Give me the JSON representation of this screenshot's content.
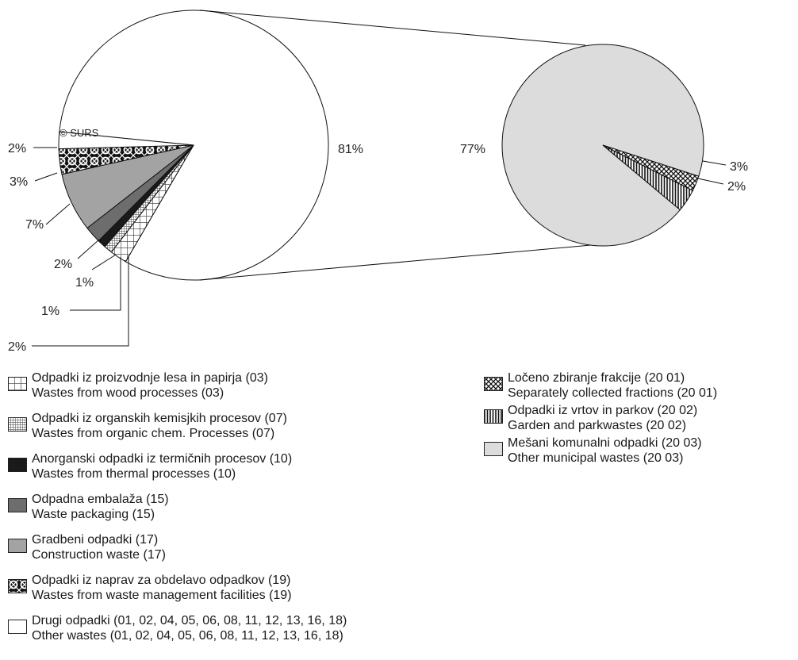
{
  "watermark": "© SURS",
  "chart_data": [
    {
      "type": "pie",
      "slices": [
        {
          "name": "Drugi odpadki (01, 02, 04, 05, 06, 08, 11, 12, 13, 16, 18)",
          "value": 81,
          "label": "81%",
          "pattern": "white"
        },
        {
          "name": "Odpadki iz proizvodnje lesa in papirja (03)",
          "value": 2,
          "label": "2%",
          "pattern": "grid"
        },
        {
          "name": "Odpadki iz organskih kemisjkih procesov (07)",
          "value": 1,
          "label": "1%",
          "pattern": "finegrid"
        },
        {
          "name": "Anorganski odpadki iz termičnih procesov (10)",
          "value": 1,
          "label": "1%",
          "pattern": "black"
        },
        {
          "name": "Odpadna embalaža (15)",
          "value": 2,
          "label": "2%",
          "pattern": "dark"
        },
        {
          "name": "Gradbeni odpadki (17)",
          "value": 7,
          "label": "7%",
          "pattern": "mid"
        },
        {
          "name": "Odpadki iz naprav za obdelavo odpadkov (19)",
          "value": 3,
          "label": "3%",
          "pattern": "lace"
        },
        {
          "name": "Drugi odpadki (01, 02, 04, 05, 06, 08, 11, 12, 13, 16, 18)",
          "value": 2,
          "label": "2%",
          "pattern": "white"
        }
      ]
    },
    {
      "type": "pie",
      "slices": [
        {
          "name": "Mešani komunalni odpadki (20 03)",
          "value": 77,
          "label": "77%",
          "pattern": "light"
        },
        {
          "name": "Odpadki iz vrtov in parkov (20 02)",
          "value": 3,
          "label": "3%",
          "pattern": "vlines"
        },
        {
          "name": "Ločeno zbiranje frakcije (20 01)",
          "value": 2,
          "label": "2%",
          "pattern": "cross"
        }
      ]
    }
  ],
  "legend_left": [
    {
      "line1": "Odpadki iz proizvodnje lesa in papirja  (03)",
      "line2": "Wastes from wood processes (03)",
      "pattern": "grid"
    },
    {
      "line1": "Odpadki iz organskih kemisjkih procesov  (07)",
      "line2": "Wastes from organic chem. Processes (07)",
      "pattern": "finegrid"
    },
    {
      "line1": "Anorganski odpadki iz termičnih procesov  (10)",
      "line2": "Wastes from thermal processes (10)",
      "pattern": "black"
    },
    {
      "line1": "Odpadna embalaža  (15)",
      "line2": "Waste packaging (15)",
      "pattern": "dark"
    },
    {
      "line1": "Gradbeni odpadki  (17)",
      "line2": "Construction waste (17)",
      "pattern": "mid"
    },
    {
      "line1": "Odpadki iz naprav za obdelavo odpadkov  (19)",
      "line2": "Wastes from waste management facilities (19)",
      "pattern": "lace"
    },
    {
      "line1": "Drugi odpadki (01, 02, 04, 05, 06, 08, 11, 12, 13, 16, 18)",
      "line2": "Other wastes (01, 02, 04, 05, 06, 08, 11, 12, 13, 16, 18)",
      "pattern": "white"
    }
  ],
  "legend_right": [
    {
      "line1": "Ločeno zbiranje frakcije (20 01)",
      "line2": "Separately collected fractions (20 01)",
      "pattern": "cross"
    },
    {
      "line1": "Odpadki iz vrtov in parkov (20 02)",
      "line2": "Garden and parkwastes (20 02)",
      "pattern": "vlines"
    },
    {
      "line1": "Mešani komunalni odpadki (20 03)",
      "line2": "Other municipal wastes (20 03)",
      "pattern": "light"
    }
  ]
}
